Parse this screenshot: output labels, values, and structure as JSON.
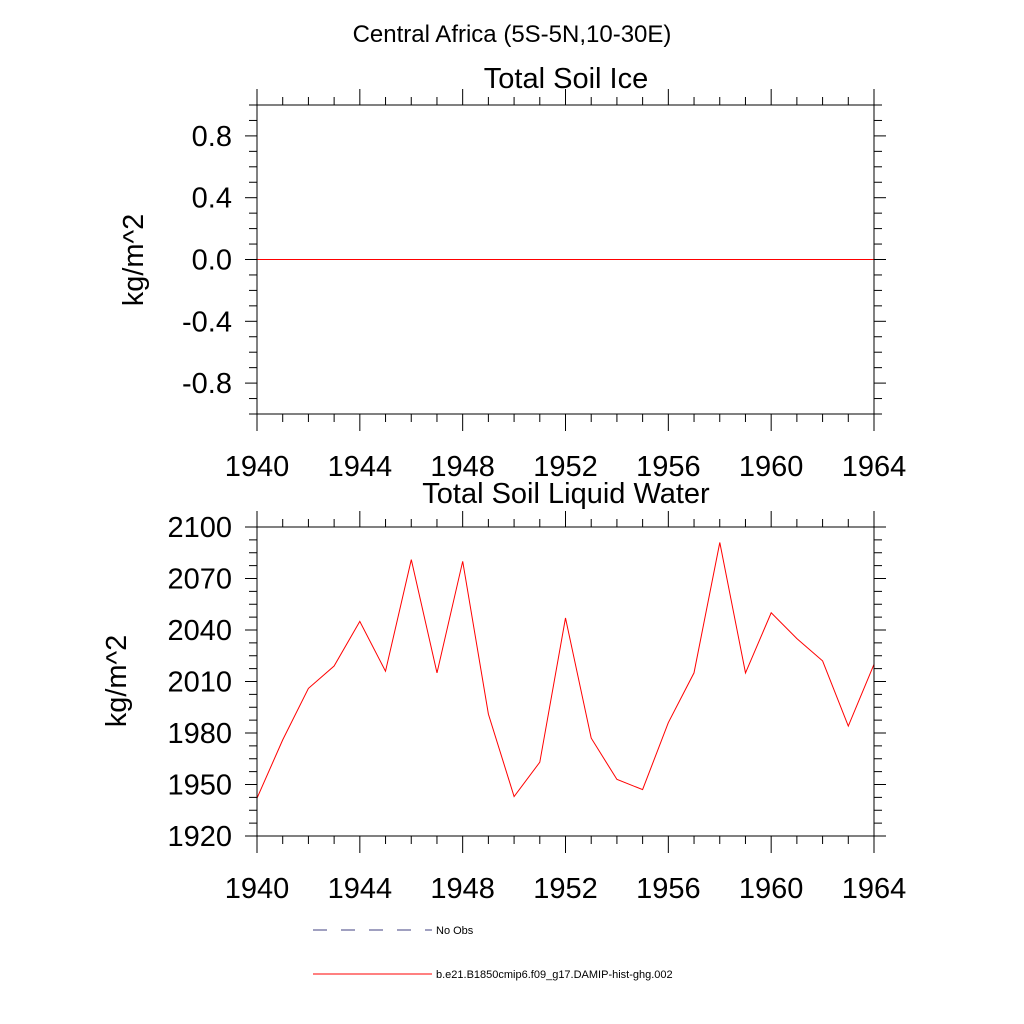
{
  "page_title": "Central Africa (5S-5N,10-30E)",
  "colors": {
    "series": "#ff0000",
    "no_obs": "#404080",
    "axes": "#000000"
  },
  "legend": {
    "placement": "bottom",
    "items": [
      {
        "label": "No Obs",
        "style": "dashed"
      },
      {
        "label": "b.e21.B1850cmip6.f09_g17.DAMIP-hist-ghg.002",
        "style": "solid"
      }
    ]
  },
  "chart_data": [
    {
      "type": "line",
      "title": "Total Soil Ice",
      "ylabel": "kg/m^2",
      "xlabel": "",
      "xlim": [
        1940,
        1964
      ],
      "ylim": [
        -1.0,
        1.0
      ],
      "xticks": [
        "1940",
        "1944",
        "1948",
        "1952",
        "1956",
        "1960",
        "1964"
      ],
      "yticks": [
        "0.8",
        "0.4",
        "0.0",
        "-0.4",
        "-0.8"
      ],
      "ytick_values": [
        0.8,
        0.4,
        0.0,
        -0.4,
        -0.8
      ],
      "grid": false,
      "series": [
        {
          "name": "b.e21.B1850cmip6.f09_g17.DAMIP-hist-ghg.002",
          "x": [
            1940,
            1941,
            1942,
            1943,
            1944,
            1945,
            1946,
            1947,
            1948,
            1949,
            1950,
            1951,
            1952,
            1953,
            1954,
            1955,
            1956,
            1957,
            1958,
            1959,
            1960,
            1961,
            1962,
            1963,
            1964
          ],
          "y": [
            0,
            0,
            0,
            0,
            0,
            0,
            0,
            0,
            0,
            0,
            0,
            0,
            0,
            0,
            0,
            0,
            0,
            0,
            0,
            0,
            0,
            0,
            0,
            0,
            0
          ]
        }
      ]
    },
    {
      "type": "line",
      "title": "Total Soil Liquid Water",
      "ylabel": "kg/m^2",
      "xlabel": "",
      "xlim": [
        1940,
        1964
      ],
      "ylim": [
        1920,
        2100
      ],
      "xticks": [
        "1940",
        "1944",
        "1948",
        "1952",
        "1956",
        "1960",
        "1964"
      ],
      "yticks": [
        "2100",
        "2070",
        "2040",
        "2010",
        "1980",
        "1950",
        "1920"
      ],
      "ytick_values": [
        2100,
        2070,
        2040,
        2010,
        1980,
        1950,
        1920
      ],
      "grid": false,
      "series": [
        {
          "name": "b.e21.B1850cmip6.f09_g17.DAMIP-hist-ghg.002",
          "x": [
            1940,
            1941,
            1942,
            1943,
            1944,
            1945,
            1946,
            1947,
            1948,
            1949,
            1950,
            1951,
            1952,
            1953,
            1954,
            1955,
            1956,
            1957,
            1958,
            1959,
            1960,
            1961,
            1962,
            1963,
            1964
          ],
          "y": [
            1942,
            1976,
            2006,
            2019,
            2045,
            2016,
            2081,
            2015,
            2080,
            1991,
            1943,
            1963,
            2047,
            1977,
            1953,
            1947,
            1986,
            2015,
            2091,
            2015,
            2050,
            2035,
            2022,
            1984,
            2020
          ]
        }
      ]
    }
  ]
}
